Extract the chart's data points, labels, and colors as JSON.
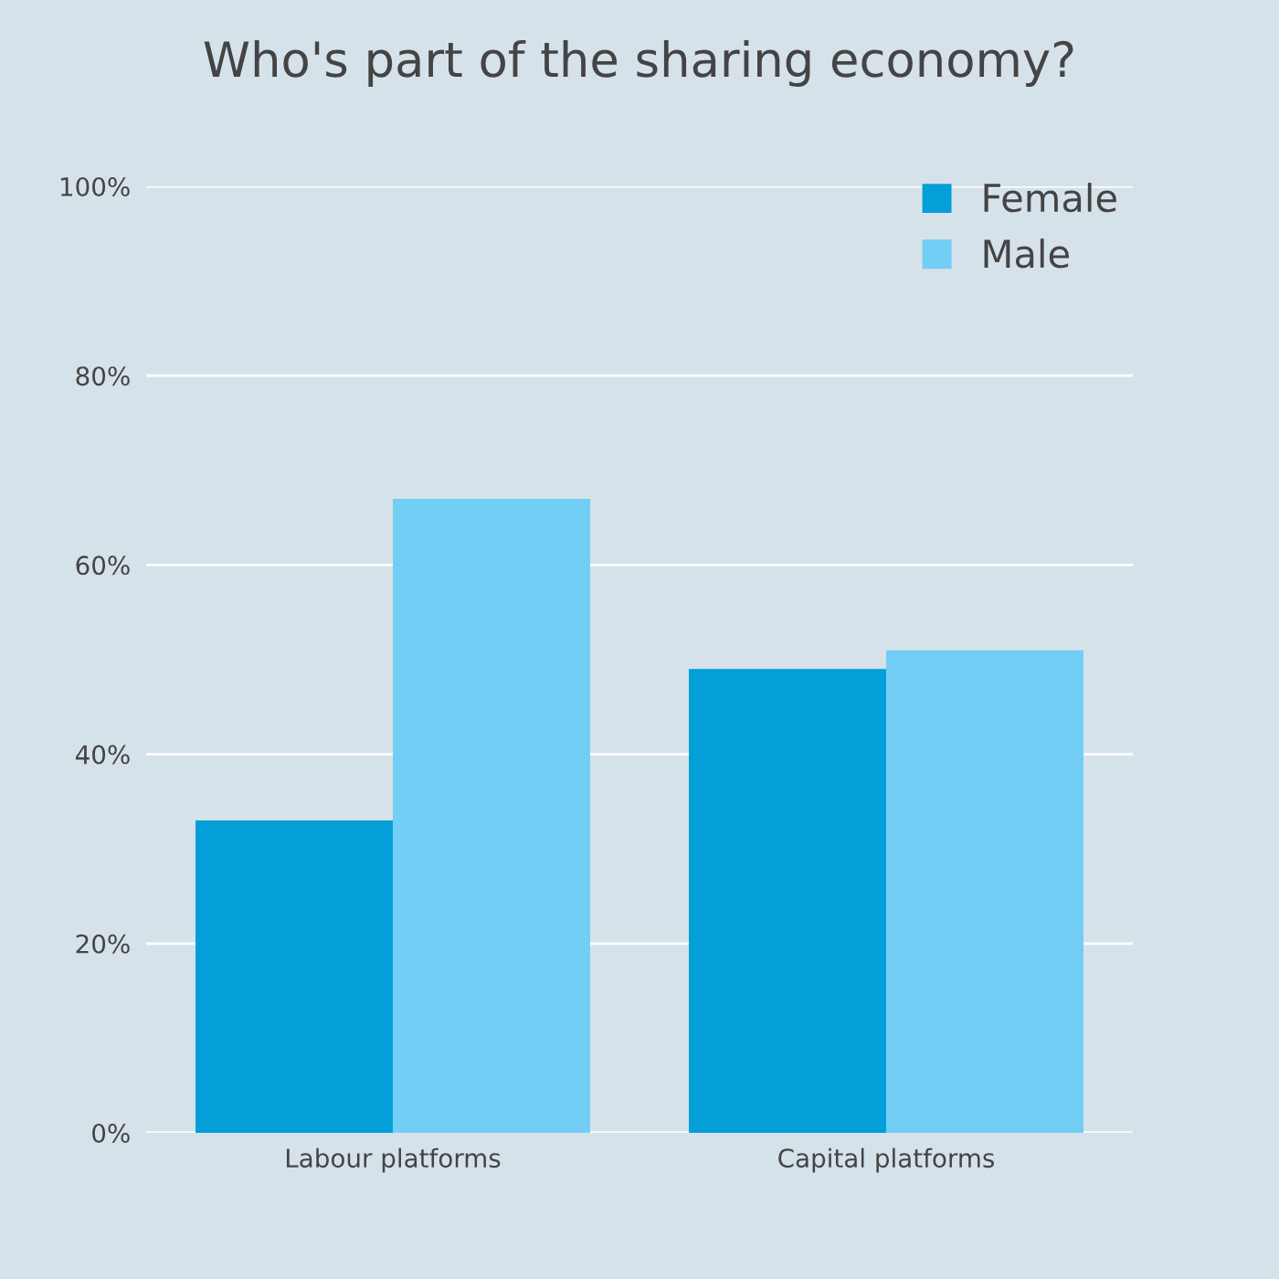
{
  "chart_data": {
    "type": "bar",
    "title": "Who's part of the sharing economy?",
    "categories": [
      "Labour platforms",
      "Capital platforms"
    ],
    "series": [
      {
        "name": "Female",
        "color": "#049fd9",
        "values": [
          33,
          49
        ]
      },
      {
        "name": "Male",
        "color": "#72cef4",
        "values": [
          67,
          51
        ]
      }
    ],
    "ylim": [
      0,
      100
    ],
    "yticks": [
      {
        "value": 0,
        "label": "0%"
      },
      {
        "value": 20,
        "label": "20%"
      },
      {
        "value": 40,
        "label": "40%"
      },
      {
        "value": 60,
        "label": "60%"
      },
      {
        "value": 80,
        "label": "80%"
      },
      {
        "value": 100,
        "label": "100%"
      }
    ],
    "grid": "y",
    "legend": "top right"
  }
}
